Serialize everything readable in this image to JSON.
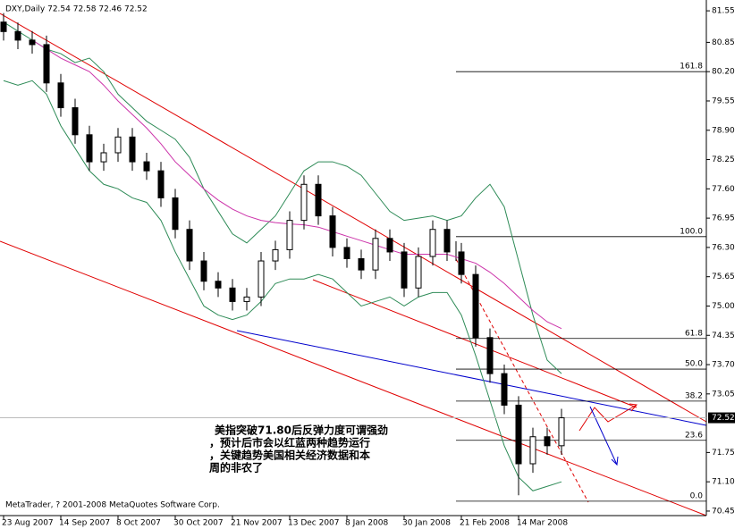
{
  "chart_data": {
    "type": "candlestick",
    "header": "DXY,Daily  72.54 72.58 72.46 72.52",
    "copyright": "MetaTrader, ? 2001-2008 MetaQuotes Software Corp.",
    "annotation": [
      "美指突破71.80后反弹力度可谓强劲",
      "，预计后市会以红蓝两种趋势运行",
      "，关键趋势美国相关经济数据和本",
      "周的非农了"
    ],
    "x_labels": [
      "23 Aug 2007",
      "14 Sep 2007",
      "8 Oct 2007",
      "30 Oct 2007",
      "21 Nov 2007",
      "13 Dec 2007",
      "8 Jan 2008",
      "30 Jan 2008",
      "21 Feb 2008",
      "14 Mar 2008"
    ],
    "open": [
      81.3,
      81.09,
      80.9,
      80.8,
      79.95,
      79.4,
      78.8,
      78.2,
      78.4,
      78.75,
      78.2,
      78.0,
      77.4,
      76.7,
      76.0,
      75.55,
      75.4,
      75.1,
      75.2,
      76.0,
      76.25,
      76.9,
      77.7,
      77.0,
      76.3,
      76.05,
      75.8,
      76.5,
      76.2,
      75.4,
      76.1,
      76.7,
      76.2,
      75.7,
      74.3,
      73.5,
      72.8,
      71.5,
      72.1,
      71.9
    ],
    "high": [
      81.5,
      81.29,
      81.1,
      81.0,
      80.15,
      79.6,
      79.0,
      78.6,
      78.95,
      78.95,
      78.4,
      78.2,
      77.6,
      76.9,
      76.2,
      75.75,
      75.6,
      75.4,
      76.2,
      76.45,
      77.1,
      77.9,
      77.9,
      77.2,
      76.5,
      76.25,
      76.7,
      76.7,
      76.4,
      76.3,
      76.9,
      76.9,
      76.4,
      75.9,
      74.5,
      73.7,
      73.0,
      72.3,
      72.3,
      72.72
    ],
    "low": [
      80.89,
      80.7,
      80.6,
      79.75,
      79.2,
      78.6,
      78.0,
      78.0,
      78.2,
      78.0,
      77.8,
      77.2,
      76.5,
      75.8,
      75.35,
      75.2,
      74.9,
      74.9,
      75.0,
      75.8,
      76.05,
      76.7,
      76.8,
      76.1,
      75.85,
      75.6,
      75.6,
      76.0,
      75.2,
      75.2,
      75.9,
      76.0,
      75.5,
      74.1,
      73.3,
      72.6,
      70.8,
      71.3,
      71.7,
      71.7
    ],
    "close": [
      81.09,
      80.9,
      80.8,
      79.95,
      79.4,
      78.8,
      78.2,
      78.4,
      78.75,
      78.2,
      78.0,
      77.4,
      76.7,
      76.0,
      75.55,
      75.4,
      75.1,
      75.2,
      76.0,
      76.25,
      76.9,
      77.7,
      77.0,
      76.3,
      76.05,
      75.8,
      76.5,
      76.2,
      75.4,
      76.1,
      76.7,
      76.2,
      75.7,
      74.3,
      73.5,
      72.8,
      71.5,
      72.1,
      71.9,
      72.52
    ],
    "last_price": 72.52,
    "series": [
      {
        "color": "#2e8b57",
        "values": [
          81.3,
          81.1,
          80.9,
          80.7,
          80.6,
          80.4,
          80.5,
          80.2,
          79.7,
          79.4,
          79.1,
          78.9,
          78.7,
          78.3,
          77.6,
          77.1,
          76.6,
          76.4,
          76.7,
          77.0,
          77.5,
          78.0,
          78.2,
          78.2,
          78.1,
          77.9,
          77.5,
          77.1,
          76.9,
          76.95,
          77.0,
          76.9,
          77.0,
          77.4,
          77.7,
          77.2,
          76.0,
          74.8,
          73.8,
          73.5
        ]
      },
      {
        "color": "#2e8b57",
        "values": [
          80.0,
          79.9,
          80.0,
          79.7,
          79.0,
          78.5,
          78.0,
          77.7,
          77.6,
          77.4,
          77.3,
          76.9,
          76.2,
          75.6,
          75.0,
          74.8,
          74.7,
          74.8,
          75.1,
          75.5,
          75.6,
          75.6,
          75.7,
          75.6,
          75.3,
          75.0,
          75.1,
          75.2,
          75.0,
          75.2,
          75.3,
          75.3,
          74.8,
          73.9,
          72.9,
          71.9,
          71.2,
          70.9,
          71.0,
          71.1
        ]
      },
      {
        "color": "#cc33aa",
        "values": [
          null,
          null,
          80.9,
          80.7,
          80.5,
          80.35,
          80.2,
          79.9,
          79.55,
          79.25,
          78.95,
          78.6,
          78.2,
          77.9,
          77.6,
          77.35,
          77.15,
          77.0,
          76.9,
          76.85,
          76.82,
          76.8,
          76.75,
          76.65,
          76.55,
          76.45,
          76.35,
          76.25,
          76.15,
          76.15,
          76.15,
          76.15,
          76.05,
          75.95,
          75.75,
          75.5,
          75.2,
          74.9,
          74.65,
          74.5
        ]
      }
    ],
    "fib_levels": [
      {
        "label": "161.8",
        "price": 80.2
      },
      {
        "label": "100.0",
        "price": 76.54
      },
      {
        "label": "61.8",
        "price": 74.28
      },
      {
        "label": "50.0",
        "price": 73.6
      },
      {
        "label": "38.2",
        "price": 72.89
      },
      {
        "label": "23.6",
        "price": 72.02
      },
      {
        "label": "0.0",
        "price": 70.67
      }
    ],
    "ylim": [
      70.35,
      81.79
    ],
    "yticks": [
      81.55,
      80.85,
      {
        "value": 80.2,
        "label": "80.20"
      },
      79.55,
      {
        "value": 78.9,
        "label": "78.90"
      },
      78.25,
      {
        "value": 77.6,
        "label": "77.60"
      },
      76.95,
      {
        "value": 76.3,
        "label": "76.30"
      },
      75.65,
      {
        "value": 75.0,
        "label": "75.00"
      },
      74.35,
      {
        "value": 73.7,
        "label": "73.70"
      },
      73.05,
      71.75,
      {
        "value": 71.1,
        "label": "71.10"
      },
      70.45
    ]
  }
}
